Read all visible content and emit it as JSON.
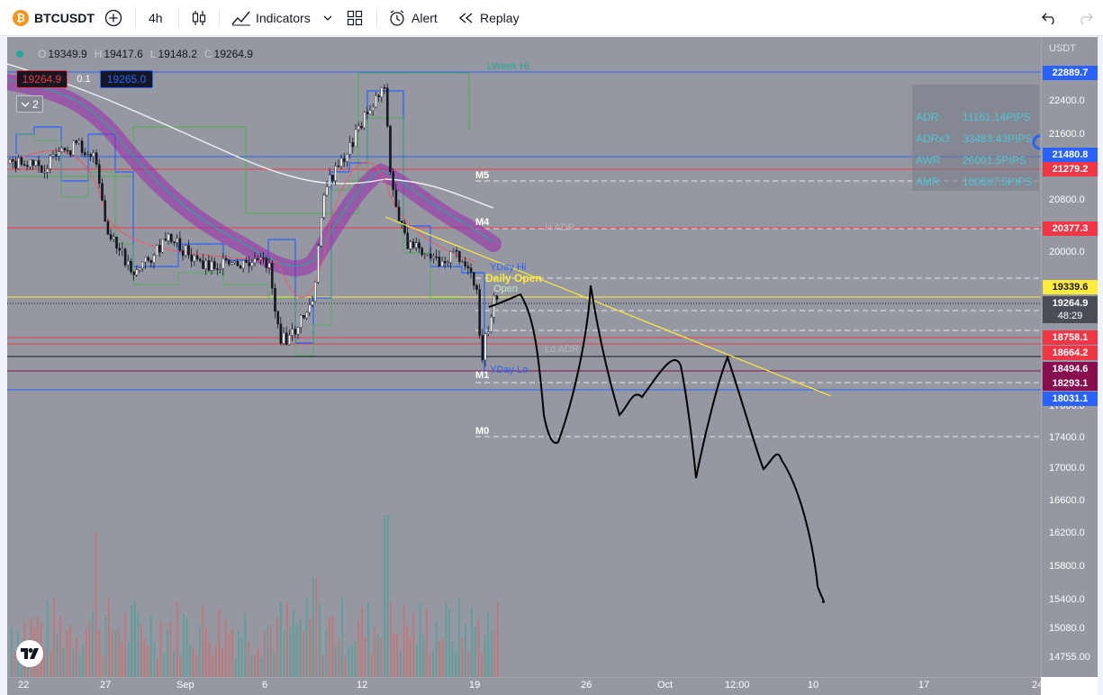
{
  "toolbar": {
    "symbol": "BTCUSDT",
    "interval": "4h",
    "indicators_label": "Indicators",
    "alert_label": "Alert",
    "replay_label": "Replay",
    "icons": [
      "bitcoin-logo-icon",
      "add-symbol-icon",
      "candles-style-icon",
      "indicators-icon",
      "chevron-down-icon",
      "layout-grid-icon",
      "alert-clock-icon",
      "replay-icon",
      "undo-icon",
      "redo-icon"
    ]
  },
  "legend": {
    "open_key": "O",
    "open": "19349.9",
    "high_key": "H",
    "high": "19417.6",
    "low_key": "L",
    "low": "19148.2",
    "close_key": "C",
    "close": "19264.9",
    "sell_price": "19264.9",
    "spread": "0.1",
    "buy_price": "19265.0",
    "collapse_count": "2"
  },
  "stats": {
    "rows": [
      {
        "k": "ADR",
        "v": "11161.14PIPS"
      },
      {
        "k": "ADRx3",
        "v": "33483.43PIPS"
      },
      {
        "k": "AWR",
        "v": "26001.5PIPS"
      },
      {
        "k": "AMR",
        "v": "100687.5PIPS"
      }
    ]
  },
  "levels": {
    "week_hi": "LWeek Hi",
    "m5": "M5",
    "m4": "M4",
    "adr_faint": "H ADR",
    "yday_hi": "YDay Hi",
    "daily_open": "Daily Open",
    "open_label": "Open",
    "lo_adr": "Lo ADR",
    "yday_lo": "YDay Lo",
    "m1": "M1",
    "m0": "M0"
  },
  "price_axis": {
    "currency": "USDT",
    "ticks": [
      "22400.0",
      "21600.0",
      "20800.0",
      "20000.0",
      "17600.0",
      "17400.0",
      "17000.0",
      "16600.0",
      "16200.0",
      "15800.0",
      "15400.0",
      "15080.0",
      "14755.00"
    ],
    "tags": [
      {
        "value": "22889.7",
        "color": "#2962ff"
      },
      {
        "value": "21480.8",
        "color": "#2962ff"
      },
      {
        "value": "21279.2",
        "color": "#f23645"
      },
      {
        "value": "20377.3",
        "color": "#f23645"
      },
      {
        "value": "19339.6",
        "color": "#ffeb3b"
      },
      {
        "value": "19264.9",
        "color": "#4a4d56"
      },
      {
        "value": "48:29",
        "color": "#4a4d56"
      },
      {
        "value": "18758.1",
        "color": "#f23645"
      },
      {
        "value": "18664.2",
        "color": "#f23645"
      },
      {
        "value": "18494.6",
        "color": "#880e4f"
      },
      {
        "value": "18293.1",
        "color": "#880e4f"
      },
      {
        "value": "18031.1",
        "color": "#2962ff"
      }
    ]
  },
  "time_axis": {
    "ticks": [
      "22",
      "27",
      "Sep",
      "6",
      "12",
      "19",
      "26",
      "Oct",
      "12:00",
      "10",
      "17",
      "24"
    ]
  },
  "colors": {
    "chart_bg": "#9598a1",
    "up": "#ffffff",
    "down": "#131722",
    "blue_level": "#2962ff",
    "red_level": "#f23645",
    "yellow": "#ffeb3b",
    "ma_band": "#9c27b0"
  }
}
